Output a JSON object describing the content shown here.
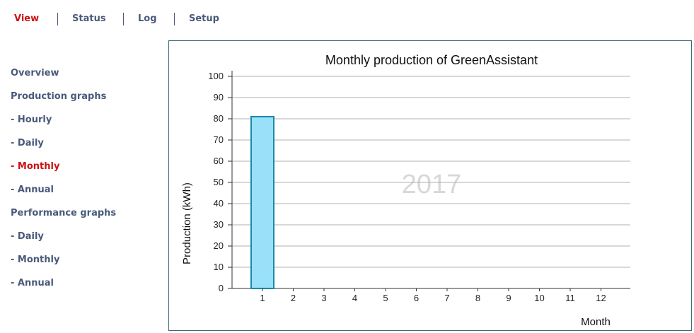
{
  "topnav": {
    "items": [
      {
        "label": "View",
        "active": true
      },
      {
        "label": "Status",
        "active": false
      },
      {
        "label": "Log",
        "active": false
      },
      {
        "label": "Setup",
        "active": false
      }
    ]
  },
  "sidebar": {
    "items": [
      {
        "label": "Overview",
        "active": false
      },
      {
        "label": "Production graphs",
        "active": false
      },
      {
        "label": "- Hourly",
        "active": false
      },
      {
        "label": "- Daily",
        "active": false
      },
      {
        "label": "- Monthly",
        "active": true
      },
      {
        "label": "- Annual",
        "active": false
      },
      {
        "label": "Performance graphs",
        "active": false
      },
      {
        "label": "- Daily",
        "active": false
      },
      {
        "label": "- Monthly",
        "active": false
      },
      {
        "label": "- Annual",
        "active": false
      }
    ]
  },
  "colors": {
    "nav_text": "#4a5a7a",
    "active_text": "#cc1111",
    "bar_fill": "#99e0f8",
    "bar_stroke": "#1a8aa8",
    "panel_border": "#3d6b78",
    "grid": "#b0b0b0"
  },
  "chart_data": {
    "type": "bar",
    "title": "Monthly production of GreenAssistant",
    "xlabel": "Month",
    "ylabel": "Production (kWh)",
    "watermark": "2017",
    "categories": [
      "1",
      "2",
      "3",
      "4",
      "5",
      "6",
      "7",
      "8",
      "9",
      "10",
      "11",
      "12"
    ],
    "values": [
      81,
      0,
      0,
      0,
      0,
      0,
      0,
      0,
      0,
      0,
      0,
      0
    ],
    "yticks": [
      "0",
      "10",
      "20",
      "30",
      "40",
      "50",
      "60",
      "70",
      "80",
      "90",
      "100"
    ],
    "ylim": [
      0,
      100
    ],
    "grid": true
  }
}
